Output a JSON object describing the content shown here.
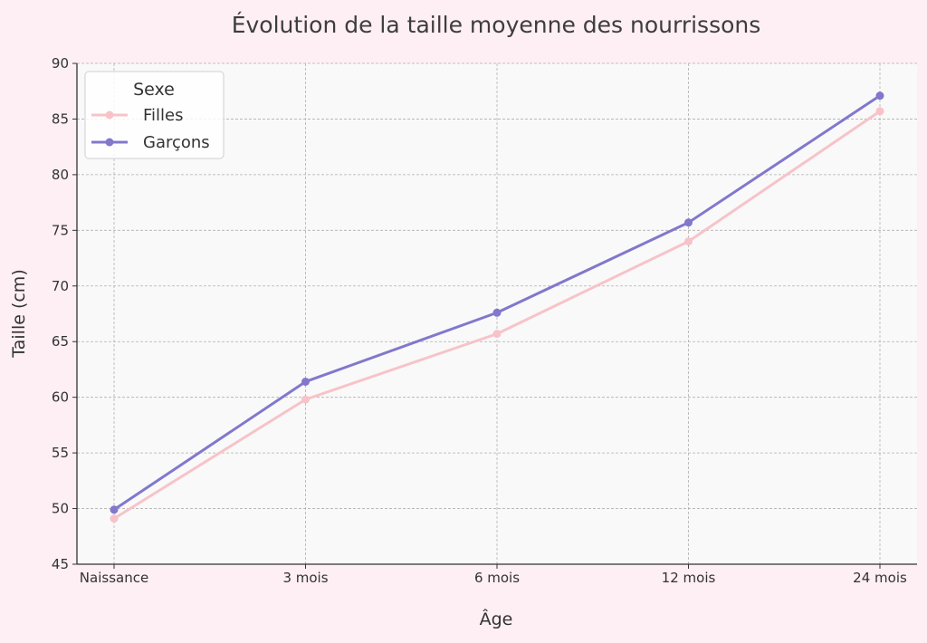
{
  "chart_data": {
    "type": "line",
    "title": "Évolution de la taille moyenne des nourrissons",
    "xlabel": "Âge",
    "ylabel": "Taille (cm)",
    "categories": [
      "Naissance",
      "3 mois",
      "6 mois",
      "12 mois",
      "24 mois"
    ],
    "ylim": [
      45,
      90
    ],
    "yticks": [
      45,
      50,
      55,
      60,
      65,
      70,
      75,
      80,
      85,
      90
    ],
    "grid": true,
    "legend": {
      "title": "Sexe",
      "position": "top-left"
    },
    "series": [
      {
        "name": "Filles",
        "color": "#f7c3c9",
        "values": [
          49.1,
          59.8,
          65.7,
          74.0,
          85.7
        ]
      },
      {
        "name": "Garçons",
        "color": "#8178cc",
        "values": [
          49.9,
          61.4,
          67.6,
          75.7,
          87.1
        ]
      }
    ]
  },
  "colors": {
    "page_background": "#fdeff4",
    "plot_background": "#f9f9f9",
    "grid": "#b0b0b0",
    "axis": "#333333",
    "text": "#333333"
  }
}
